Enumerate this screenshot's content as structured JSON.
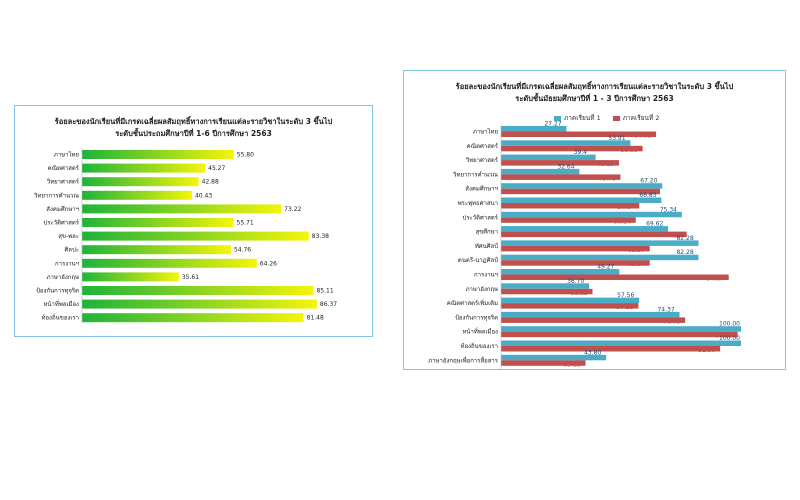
{
  "chart_data": [
    {
      "type": "bar",
      "orientation": "horizontal",
      "title_line1": "ร้อยละของนักเรียนที่มีเกรดเฉลี่ยผลสัมฤทธิ์ทางการเรียนแต่ละรายวิชาในระดับ 3 ขึ้นไป",
      "title_line2": "ระดับชั้นประถมศึกษาปีที่ 1-6 ปีการศึกษา 2563",
      "categories": [
        "ภาษาไทย",
        "คณิตศาสตร์",
        "วิทยาศาสตร์",
        "วิทยาการคำนวณ",
        "สังคมศึกษาฯ",
        "ประวัติศาสตร์",
        "สุข-พละ",
        "ศิลปะ",
        "การงานฯ",
        "ภาษาอังกฤษ",
        "ป้องกันการทุจริต",
        "หน้าที่พลเมือง",
        "ท้องถิ่นของเรา"
      ],
      "values": [
        55.8,
        45.27,
        42.88,
        40.43,
        73.22,
        55.71,
        83.38,
        54.76,
        64.26,
        35.61,
        85.11,
        86.37,
        81.48
      ],
      "value_labels": [
        "55.80",
        "45.27",
        "42.88",
        "40.43",
        "73.22",
        "55.71",
        "83.38",
        "54.76",
        "64.26",
        "35.61",
        "85.11",
        "86.37",
        "81.48"
      ],
      "xlim": [
        0,
        100
      ],
      "colors": {
        "start": "#1db33a",
        "end": "#f5f50a"
      }
    },
    {
      "type": "bar",
      "orientation": "horizontal",
      "title_line1": "ร้อยละของนักเรียนที่มีเกรดเฉลี่ยผลสัมฤทธิ์ทางการเรียนแต่ละรายวิชาในระดับ 3 ขึ้นไป",
      "title_line2": "ระดับชั้นมัธยมศึกษาปีที่ 1 - 3 ปีการศึกษา 2563",
      "legend_position": "top",
      "categories": [
        "ภาษาไทย",
        "คณิตศาสตร์",
        "วิทยาศาสตร์",
        "วิทยาการคำนวณ",
        "สังคมศึกษาฯ",
        "พระพุทธศาสนา",
        "ประวัติศาสตร์",
        "สุขศึกษา",
        "ทัศนศิลป์",
        "ดนตรี-นาฏศิลป์",
        "การงานฯ",
        "ภาษาอังกฤษ",
        "คณิตศาสตร์เพิ่มเติม",
        "ป้องกันการทุจริต",
        "หน้าที่พลเมือง",
        "ท้องถิ่นของเรา",
        "ภาษาอังกฤษเพื่อการสื่อสาร"
      ],
      "series": [
        {
          "name": "ภาคเรียนที่ 1",
          "color": "#4bacc6",
          "values": [
            27.27,
            53.91,
            39.41,
            32.64,
            67.2,
            66.83,
            75.34,
            69.62,
            82.28,
            82.28,
            49.27,
            36.7,
            57.56,
            74.37,
            100.0,
            100.0,
            43.8
          ],
          "value_labels": [
            "27.27",
            "53.91",
            "39.4",
            "32.64",
            "67.20",
            "66.83",
            "75.34",
            "69.62",
            "82.28",
            "82.28",
            "49.27",
            "36.70",
            "57.56",
            "74.37",
            "100.00",
            "100.00",
            "43.80"
          ]
        },
        {
          "name": "ภาคเรียนที่ 2",
          "color": "#c0504d",
          "values": [
            64.61,
            58.99,
            49.15,
            49.76,
            66.25,
            57.61,
            56.14,
            77.35,
            61.97,
            61.97,
            94.87,
            38.12,
            57.25,
            76.73,
            98.55,
            91.3,
            35.22
          ],
          "value_labels": [
            "64.61",
            "58.99",
            "49.15",
            "49.76",
            "66.25",
            "57.6",
            "56.14",
            "77.35",
            "61.97",
            "61.97",
            "94.87",
            "38.12",
            "57.25",
            "76.73",
            "98.55",
            "91.30",
            "35.22"
          ]
        }
      ],
      "xlim": [
        0,
        100
      ]
    }
  ]
}
